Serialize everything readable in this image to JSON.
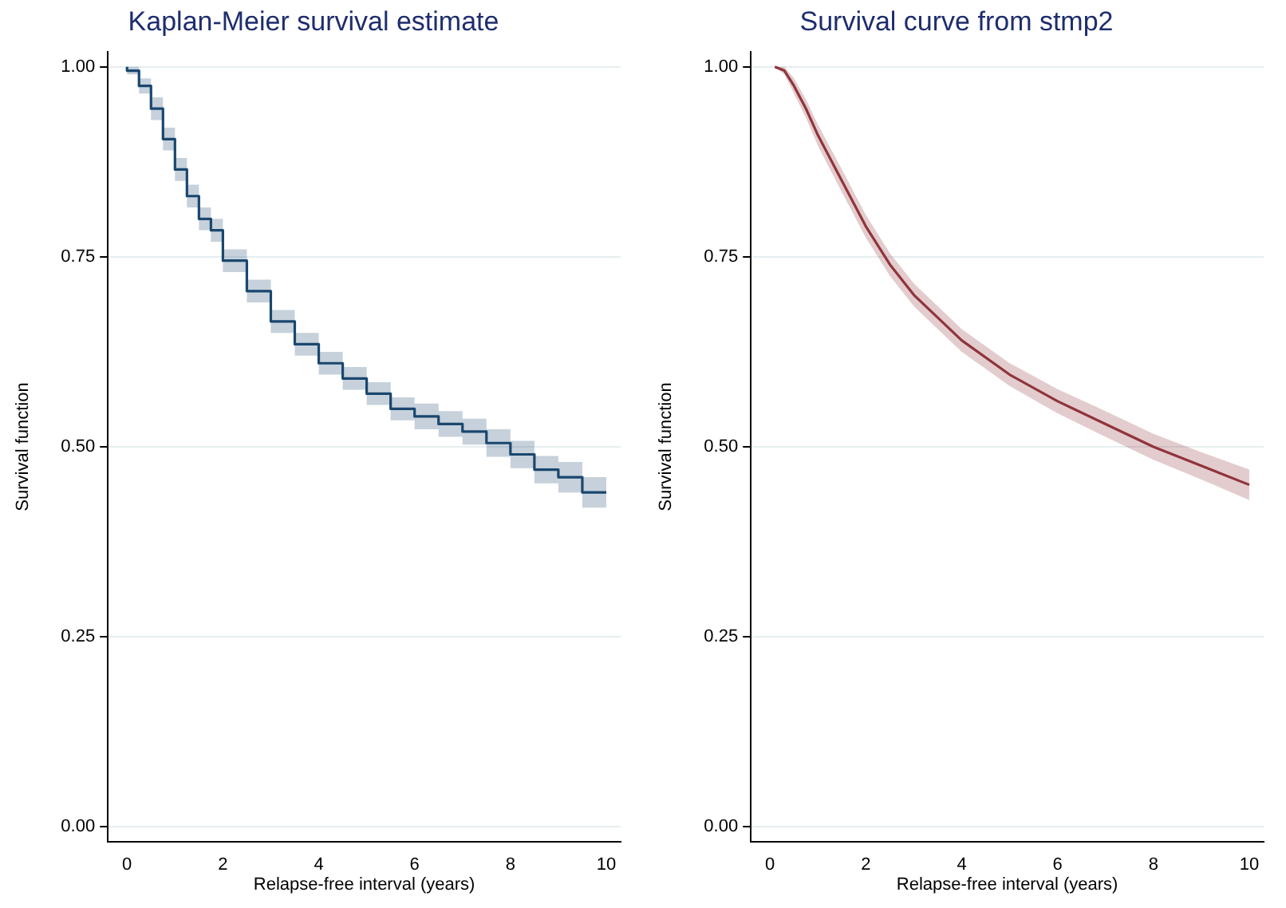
{
  "chart_data": [
    {
      "type": "step",
      "title": "Kaplan-Meier survival estimate",
      "xlabel": "Relapse-free interval (years)",
      "ylabel": "Survival function",
      "xlim": [
        -0.4,
        10.3
      ],
      "ylim": [
        -0.02,
        1.02
      ],
      "xticks": [
        0,
        2,
        4,
        6,
        8,
        10
      ],
      "yticks": [
        {
          "value": 0,
          "label": "0.00"
        },
        {
          "value": 0.25,
          "label": "0.25"
        },
        {
          "value": 0.5,
          "label": "0.50"
        },
        {
          "value": 0.75,
          "label": "0.75"
        },
        {
          "value": 1,
          "label": "1.00"
        }
      ],
      "grid": "y",
      "legend": false,
      "line_style": "solid",
      "marker": "none",
      "x": [
        0,
        0.25,
        0.5,
        0.75,
        1,
        1.25,
        1.5,
        1.75,
        2,
        2.5,
        3,
        3.5,
        4,
        4.5,
        5,
        5.5,
        6,
        6.5,
        7,
        7.5,
        8,
        8.5,
        9,
        9.5,
        10
      ],
      "series": [
        {
          "color": "#1a476f",
          "values": [
            1,
            0.995,
            0.975,
            0.945,
            0.905,
            0.865,
            0.83,
            0.8,
            0.785,
            0.745,
            0.705,
            0.665,
            0.635,
            0.61,
            0.59,
            0.57,
            0.55,
            0.54,
            0.53,
            0.52,
            0.505,
            0.49,
            0.47,
            0.46,
            0.44
          ],
          "lower": [
            1,
            0.99,
            0.965,
            0.93,
            0.89,
            0.85,
            0.815,
            0.785,
            0.77,
            0.73,
            0.69,
            0.65,
            0.62,
            0.595,
            0.575,
            0.555,
            0.535,
            0.523,
            0.513,
            0.503,
            0.487,
            0.472,
            0.452,
            0.44,
            0.42
          ],
          "upper": [
            1,
            1,
            0.985,
            0.96,
            0.92,
            0.88,
            0.845,
            0.815,
            0.8,
            0.76,
            0.72,
            0.68,
            0.65,
            0.625,
            0.605,
            0.585,
            0.565,
            0.557,
            0.547,
            0.537,
            0.523,
            0.508,
            0.488,
            0.48,
            0.46
          ]
        }
      ]
    },
    {
      "type": "line",
      "title": "Survival curve from stmp2",
      "xlabel": "Relapse-free interval (years)",
      "ylabel": "Survival function",
      "xlim": [
        -0.4,
        10.3
      ],
      "ylim": [
        -0.02,
        1.02
      ],
      "xticks": [
        0,
        2,
        4,
        6,
        8,
        10
      ],
      "yticks": [
        {
          "value": 0,
          "label": "0.00"
        },
        {
          "value": 0.25,
          "label": "0.25"
        },
        {
          "value": 0.5,
          "label": "0.50"
        },
        {
          "value": 0.75,
          "label": "0.75"
        },
        {
          "value": 1,
          "label": "1.00"
        }
      ],
      "grid": "y",
      "legend": false,
      "line_style": "solid",
      "marker": "none",
      "x": [
        0.1,
        0.3,
        0.5,
        0.75,
        1,
        1.5,
        2,
        2.5,
        3,
        3.5,
        4,
        5,
        6,
        7,
        8,
        9,
        10
      ],
      "series": [
        {
          "color": "#90353b",
          "values": [
            1,
            0.995,
            0.975,
            0.945,
            0.91,
            0.85,
            0.79,
            0.74,
            0.7,
            0.67,
            0.64,
            0.595,
            0.56,
            0.53,
            0.5,
            0.475,
            0.45
          ],
          "lower": [
            1,
            0.99,
            0.965,
            0.933,
            0.896,
            0.835,
            0.775,
            0.725,
            0.685,
            0.655,
            0.625,
            0.58,
            0.544,
            0.513,
            0.483,
            0.457,
            0.43
          ],
          "upper": [
            1,
            1,
            0.985,
            0.957,
            0.924,
            0.865,
            0.805,
            0.755,
            0.715,
            0.685,
            0.655,
            0.61,
            0.576,
            0.547,
            0.517,
            0.493,
            0.47
          ]
        }
      ]
    }
  ]
}
